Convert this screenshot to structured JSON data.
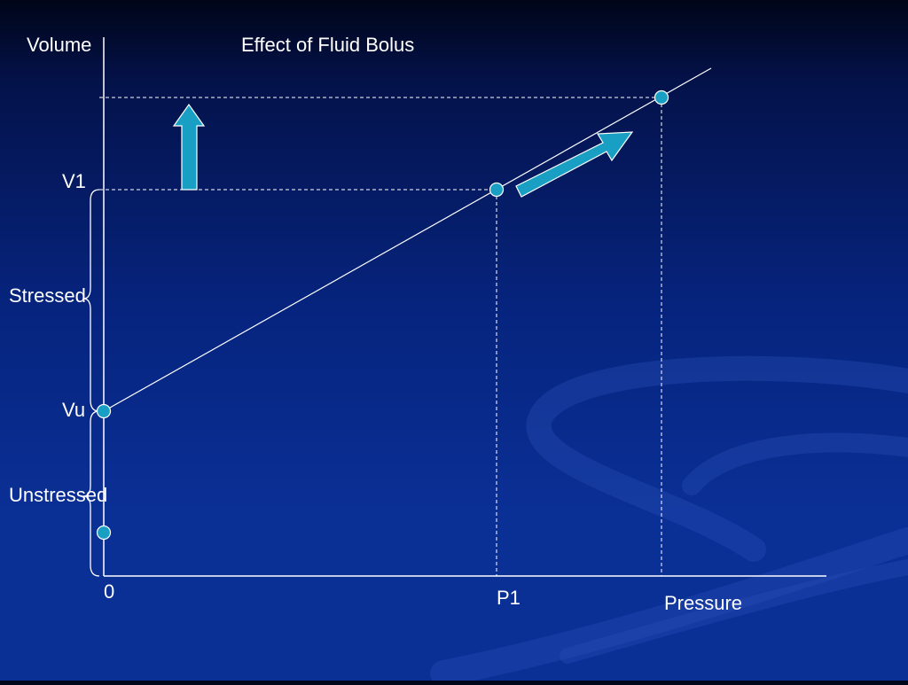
{
  "title": "Effect of Fluid Bolus",
  "axes": {
    "y_label": "Volume",
    "x_label": "Pressure",
    "origin_label": "0"
  },
  "markers": {
    "v1": "V1",
    "vu": "Vu",
    "p1": "P1"
  },
  "braces": {
    "stressed": "Stressed",
    "unstressed": "Unstressed"
  },
  "colors": {
    "background_top": "#000518",
    "background_bottom": "#0a2f95",
    "line": "#ffffff",
    "point_fill": "#1a9fc4",
    "arrow_fill": "#1a9fc4",
    "arrow_stroke": "#ffffff"
  }
}
